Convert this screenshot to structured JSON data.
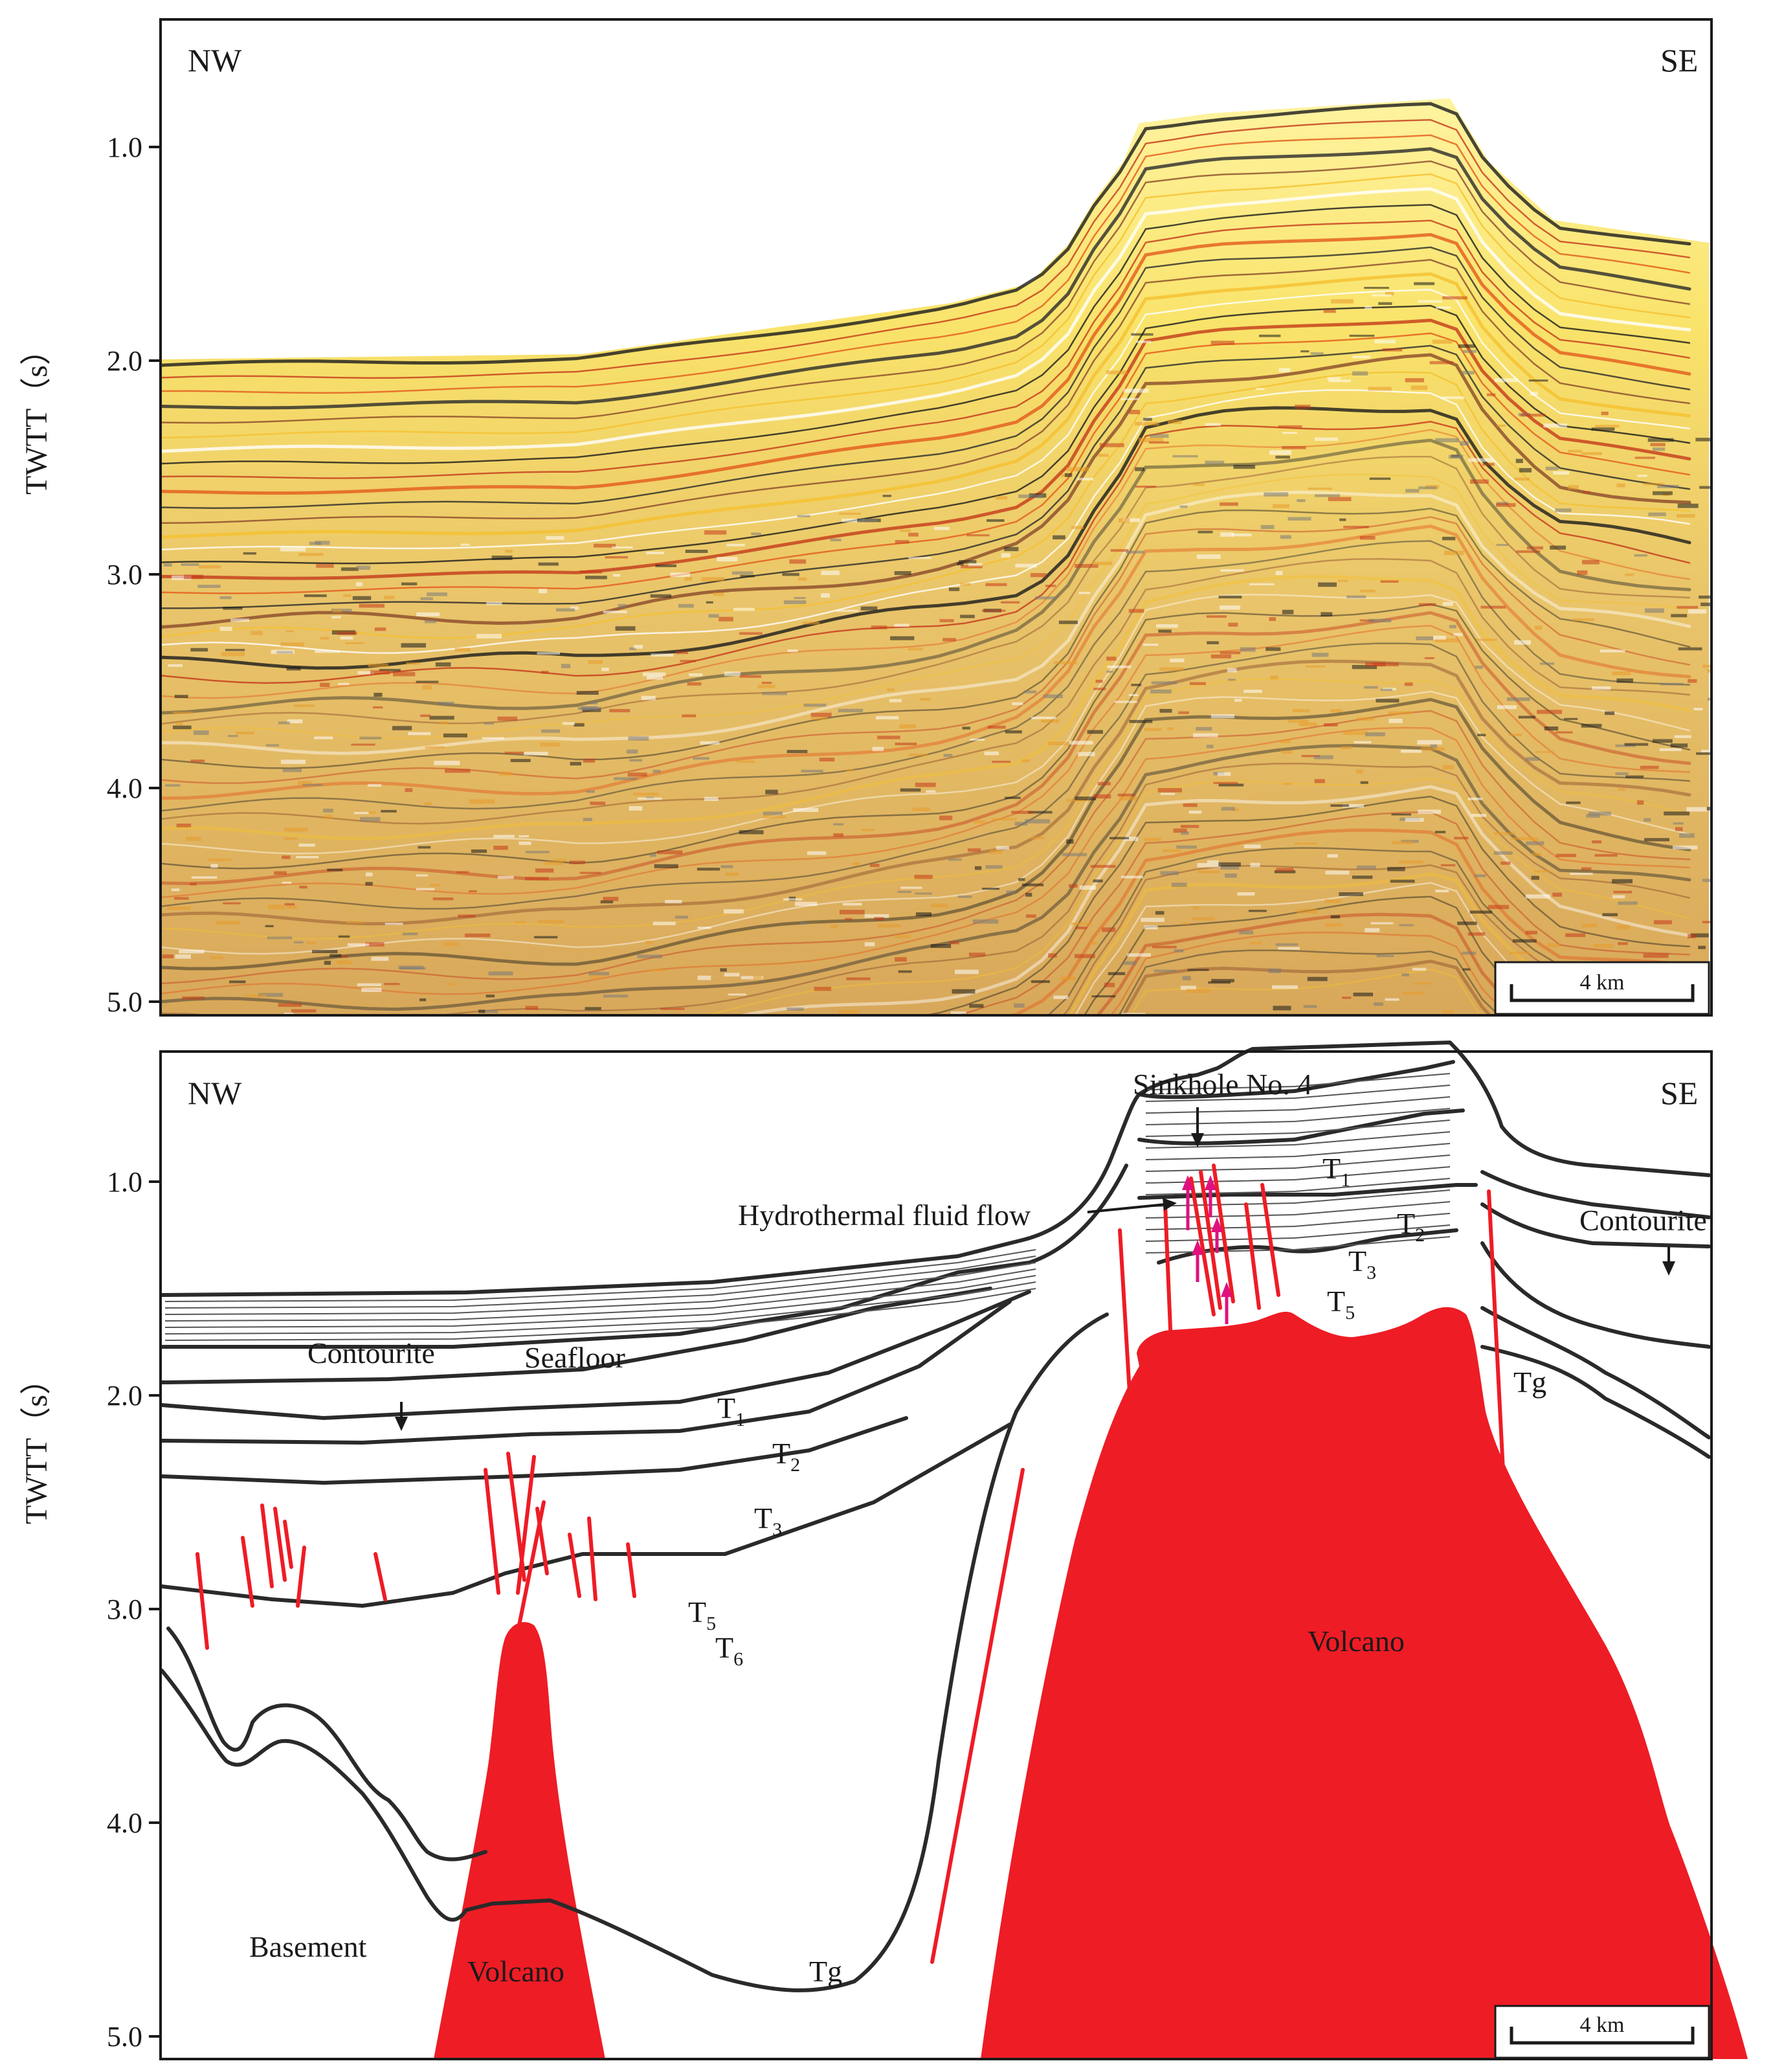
{
  "top_panel": {
    "left_label": "NW",
    "right_label": "SE",
    "y_axis_title": "TWTT（s）",
    "y_ticks": [
      "1.0",
      "2.0",
      "3.0",
      "4.0",
      "5.0"
    ],
    "scale_bar": "4 km"
  },
  "bottom_panel": {
    "left_label": "NW",
    "right_label": "SE",
    "y_axis_title": "TWTT（s）",
    "y_ticks": [
      "1.0",
      "2.0",
      "3.0",
      "4.0",
      "5.0"
    ],
    "scale_bar": "4 km",
    "annotations": {
      "sinkhole": "Sinkhole No. 4",
      "fluid_flow": "Hydrothermal fluid flow",
      "contourite_left": "Contourite",
      "contourite_right": "Contourite",
      "seafloor": "Seafloor",
      "basement": "Basement",
      "volcano_small": "Volcano",
      "volcano_large": "Volcano",
      "tg_left": "Tg",
      "tg_right": "Tg"
    },
    "horizons": [
      {
        "letter": "T",
        "sub": "1"
      },
      {
        "letter": "T",
        "sub": "2"
      },
      {
        "letter": "T",
        "sub": "3"
      },
      {
        "letter": "T",
        "sub": "5"
      },
      {
        "letter": "T",
        "sub": "6"
      },
      {
        "letter": "T",
        "sub": "1"
      },
      {
        "letter": "T",
        "sub": "2"
      },
      {
        "letter": "T",
        "sub": "3"
      },
      {
        "letter": "T",
        "sub": "5"
      }
    ]
  },
  "colors": {
    "volcano": "#ee1c25",
    "fault": "#ee1c25",
    "fluid_arrow": "#e0117f",
    "horizon": "#2a2a2a"
  }
}
